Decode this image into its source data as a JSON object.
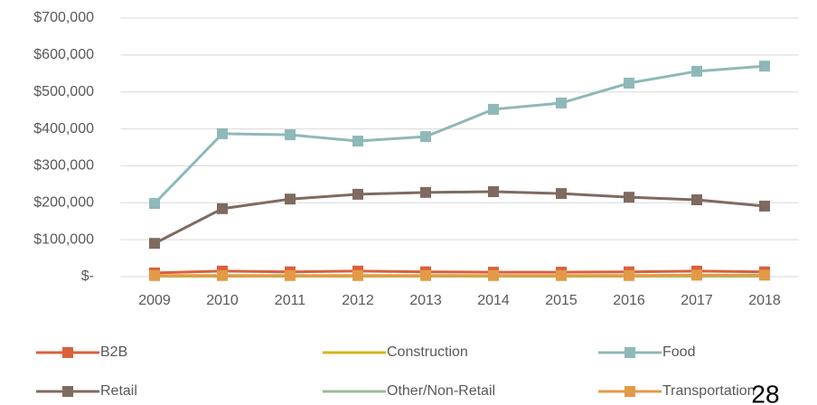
{
  "chart_data": {
    "type": "line",
    "categories": [
      "2009",
      "2010",
      "2011",
      "2012",
      "2013",
      "2014",
      "2015",
      "2016",
      "2017",
      "2018"
    ],
    "series": [
      {
        "name": "B2B",
        "color": "#d9603b",
        "marker": "square",
        "values": [
          10000,
          15000,
          13000,
          15000,
          13000,
          12000,
          12000,
          13000,
          15000,
          13000
        ]
      },
      {
        "name": "Construction",
        "color": "#d4b41a",
        "marker": null,
        "values": [
          1000,
          1000,
          1000,
          1000,
          1000,
          1000,
          1000,
          1000,
          1000,
          1000
        ]
      },
      {
        "name": "Food",
        "color": "#8fb8b8",
        "marker": "square",
        "values": [
          198000,
          387000,
          384000,
          367000,
          379000,
          453000,
          470000,
          524000,
          556000,
          570000
        ]
      },
      {
        "name": "Retail",
        "color": "#7f6a5f",
        "marker": "square",
        "values": [
          90000,
          184000,
          210000,
          223000,
          228000,
          230000,
          225000,
          215000,
          208000,
          191000
        ]
      },
      {
        "name": "Other/Non-Retail",
        "color": "#9bbb94",
        "marker": null,
        "values": [
          2000,
          2000,
          2000,
          2000,
          2000,
          2000,
          2000,
          2000,
          2000,
          2000
        ]
      },
      {
        "name": "Transportation",
        "color": "#e39a46",
        "marker": "square",
        "values": [
          3000,
          3000,
          3000,
          3000,
          3000,
          3000,
          3000,
          3000,
          4000,
          4000
        ]
      }
    ],
    "ylim": [
      0,
      700000
    ],
    "yticks": [
      {
        "value": 0,
        "label": "$-"
      },
      {
        "value": 100000,
        "label": "$100,000"
      },
      {
        "value": 200000,
        "label": "$200,000"
      },
      {
        "value": 300000,
        "label": "$300,000"
      },
      {
        "value": 400000,
        "label": "$400,000"
      },
      {
        "value": 500000,
        "label": "$500,000"
      },
      {
        "value": 600000,
        "label": "$600,000"
      },
      {
        "value": 700000,
        "label": "$700,000"
      }
    ],
    "grid": true,
    "legend": "bottom"
  },
  "page_number": "28"
}
